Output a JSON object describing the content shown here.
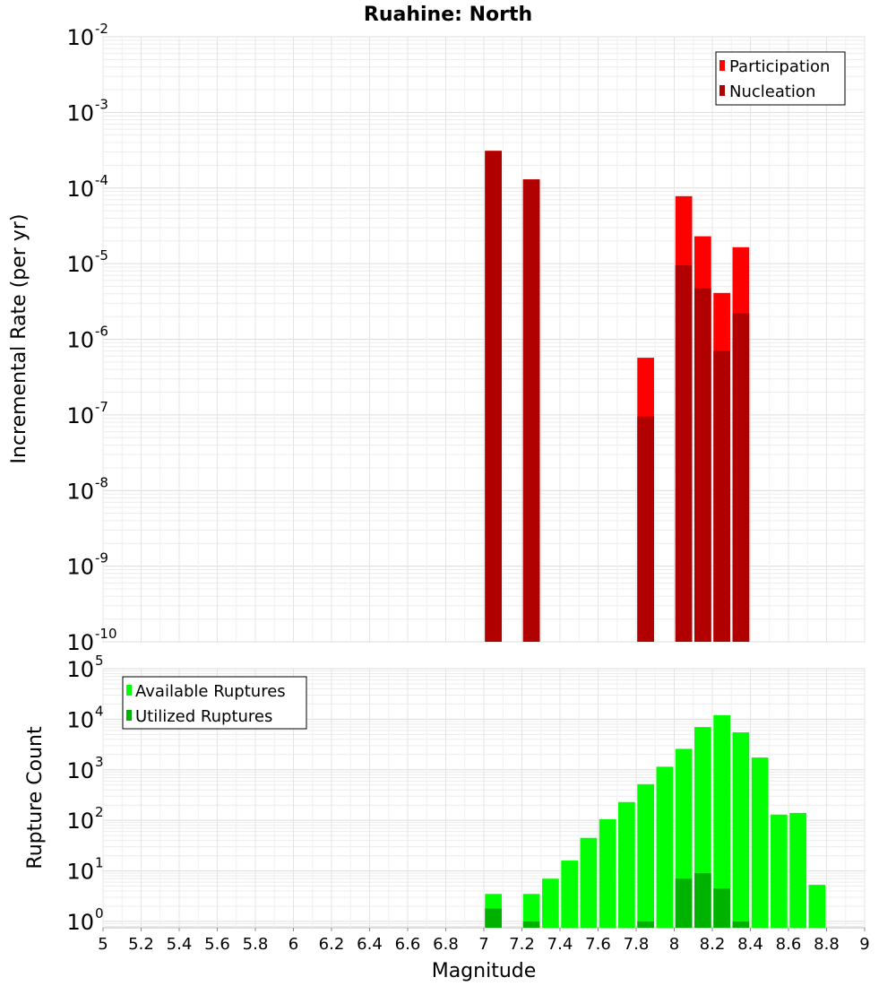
{
  "chart_data": [
    {
      "type": "bar",
      "title": "Ruahine: North",
      "ylabel": "Incremental Rate (per yr)",
      "yscale": "log",
      "ylim": [
        1e-10,
        0.01
      ],
      "y_tick_exponents": [
        "-2",
        "-3",
        "-4",
        "-5",
        "-6",
        "-7",
        "-8",
        "-9",
        "-10"
      ],
      "y_tick_base": "10",
      "legend": "top-right",
      "series": [
        {
          "name": "Participation",
          "color": "#ff0000",
          "x": [
            7.05,
            7.25,
            7.85,
            8.05,
            8.15,
            8.25,
            8.35
          ],
          "values": [
            0.00031,
            0.00013,
            5.7e-07,
            7.8e-05,
            2.3e-05,
            4.1e-06,
            1.65e-05
          ]
        },
        {
          "name": "Nucleation",
          "color": "#b00000",
          "x": [
            7.05,
            7.25,
            7.85,
            8.05,
            8.15,
            8.25,
            8.35
          ],
          "values": [
            0.00031,
            0.00013,
            9.5e-08,
            9.5e-06,
            4.7e-06,
            7e-07,
            2.2e-06
          ]
        }
      ]
    },
    {
      "type": "bar",
      "xlabel": "Magnitude",
      "ylabel": "Rupture Count",
      "yscale": "log",
      "ylim": [
        0.75,
        100000
      ],
      "y_tick_exponents": [
        "5",
        "4",
        "3",
        "2",
        "1",
        "0"
      ],
      "y_tick_base": "10",
      "xlim": [
        5,
        9
      ],
      "x_ticks": [
        "5",
        "5.2",
        "5.4",
        "5.6",
        "5.8",
        "6",
        "6.2",
        "6.4",
        "6.6",
        "6.8",
        "7",
        "7.2",
        "7.4",
        "7.6",
        "7.8",
        "8",
        "8.2",
        "8.4",
        "8.6",
        "8.8",
        "9"
      ],
      "legend": "top-left",
      "series": [
        {
          "name": "Available Ruptures",
          "color": "#00ff00",
          "x": [
            7.05,
            7.25,
            7.35,
            7.45,
            7.55,
            7.65,
            7.75,
            7.85,
            7.95,
            8.05,
            8.15,
            8.25,
            8.35,
            8.45,
            8.55,
            8.65,
            8.75
          ],
          "values": [
            3.5,
            3.5,
            7,
            16,
            45,
            105,
            230,
            520,
            1150,
            2600,
            7000,
            12000,
            5500,
            1750,
            130,
            140,
            5.3
          ]
        },
        {
          "name": "Utilized Ruptures",
          "color": "#00b200",
          "x": [
            7.05,
            7.25,
            7.85,
            8.05,
            8.15,
            8.25,
            8.35
          ],
          "values": [
            1.8,
            1,
            1,
            7,
            9,
            4.5,
            1
          ]
        }
      ]
    }
  ]
}
